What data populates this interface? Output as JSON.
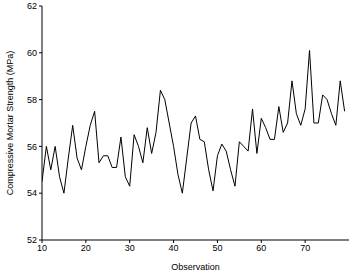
{
  "chart_data": {
    "type": "line",
    "x_label": "Observation",
    "y_label": "Compressive Mortar Strength (MPa)",
    "x": [
      10,
      11,
      12,
      13,
      14,
      15,
      16,
      17,
      18,
      19,
      20,
      21,
      22,
      23,
      24,
      25,
      26,
      27,
      28,
      29,
      30,
      31,
      32,
      33,
      34,
      35,
      36,
      37,
      38,
      39,
      40,
      41,
      42,
      43,
      44,
      45,
      46,
      47,
      48,
      49,
      50,
      51,
      52,
      53,
      54,
      55,
      56,
      57,
      58,
      59,
      60,
      61,
      62,
      63,
      64,
      65,
      66,
      67,
      68,
      69,
      70,
      71,
      72,
      73,
      74,
      75,
      76,
      77,
      78,
      79
    ],
    "values": [
      54.5,
      56.0,
      55.0,
      56.0,
      54.7,
      54.0,
      55.5,
      56.9,
      55.5,
      55.0,
      56.0,
      56.9,
      57.5,
      55.3,
      55.6,
      55.6,
      55.1,
      55.1,
      56.4,
      54.7,
      54.3,
      56.5,
      56.0,
      55.3,
      56.8,
      55.7,
      56.6,
      58.4,
      58.0,
      57.0,
      56.0,
      54.8,
      54.0,
      55.5,
      57.0,
      57.3,
      56.3,
      56.2,
      55.0,
      54.1,
      55.6,
      56.1,
      55.8,
      55.0,
      54.3,
      56.2,
      56.0,
      55.8,
      57.6,
      55.7,
      57.2,
      56.8,
      56.3,
      56.3,
      57.7,
      56.6,
      57.0,
      58.8,
      57.4,
      56.9,
      57.6,
      60.1,
      57.0,
      57.0,
      58.2,
      58.0,
      57.4,
      56.9,
      58.8,
      57.5
    ],
    "color": "#000000",
    "xlim": [
      10,
      80
    ],
    "ylim": [
      52,
      62
    ],
    "xticks": [
      10,
      20,
      30,
      40,
      50,
      60,
      70
    ],
    "yticks": [
      52,
      54,
      56,
      58,
      60,
      62
    ],
    "grid": false
  }
}
